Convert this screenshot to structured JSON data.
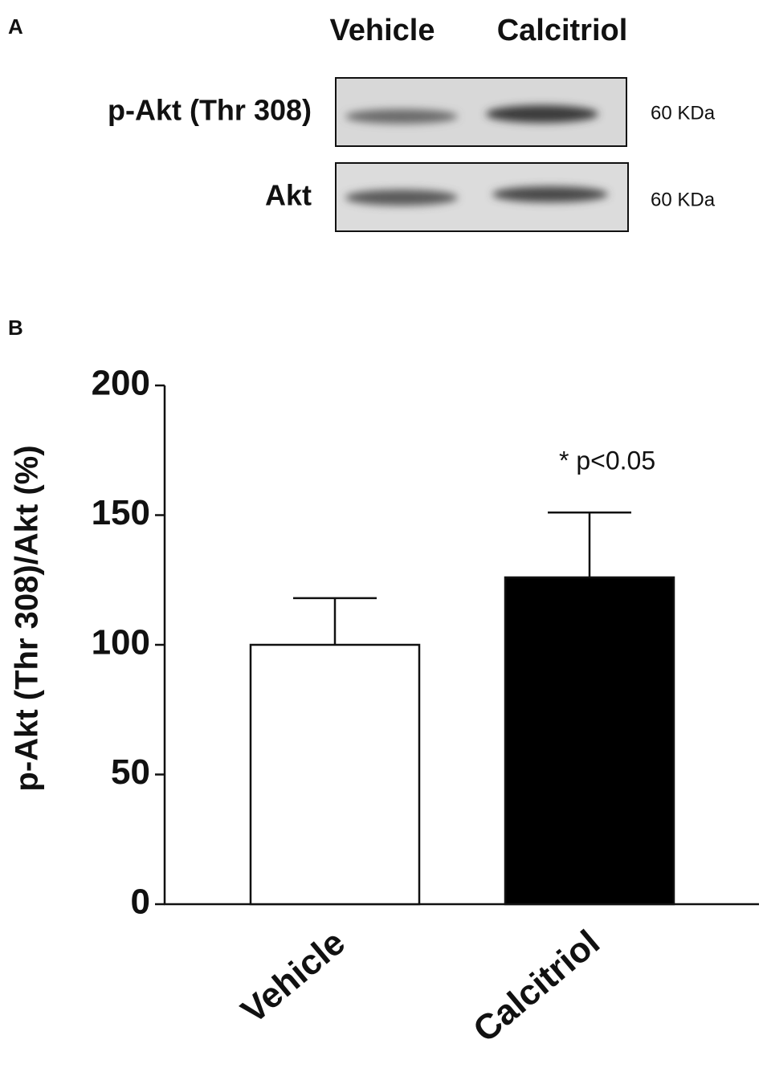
{
  "panel_a": {
    "label": "A",
    "columns": [
      "Vehicle",
      "Calcitriol"
    ],
    "rows": [
      {
        "name": "p-Akt (Thr 308)",
        "size": "60 KDa"
      },
      {
        "name": "Akt",
        "size": "60 KDa"
      }
    ]
  },
  "chart_data": {
    "type": "bar",
    "panel_label": "B",
    "y_label": "p-Akt (Thr 308)/Akt (%)",
    "categories": [
      "Vehicle",
      "Calcitriol"
    ],
    "values": [
      100,
      126
    ],
    "errors": [
      18,
      25
    ],
    "colors": [
      "#ffffff",
      "#000000"
    ],
    "ylim": [
      0,
      200
    ],
    "yticks": [
      0,
      50,
      100,
      150,
      200
    ],
    "annotation": "* p<0.05"
  }
}
